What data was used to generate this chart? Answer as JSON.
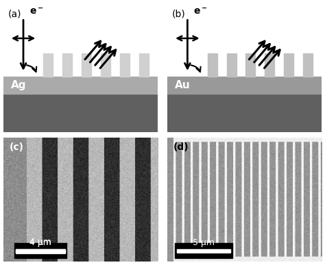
{
  "fig_width": 4.74,
  "fig_height": 3.9,
  "bg_color": "#ffffff",
  "panel_a": {
    "label": "(a)",
    "metal_label": "Ag",
    "film_color_top": "#aaaaaa",
    "film_color_bottom": "#606060",
    "grating_color": "#d0d0d0",
    "bg_color": "#ffffff"
  },
  "panel_b": {
    "label": "(b)",
    "metal_label": "Au",
    "film_color_top": "#999999",
    "film_color_bottom": "#606060",
    "grating_color": "#c0c0c0",
    "bg_color": "#ffffff"
  },
  "panel_c": {
    "label": "(c)",
    "scale_bar_text": "4 μm"
  },
  "panel_d": {
    "label": "(d)",
    "scale_bar_text": "5 μm"
  },
  "label_fontsize": 10,
  "metal_label_fontsize": 11,
  "scale_fontsize": 9,
  "arrow_color": "#000000"
}
